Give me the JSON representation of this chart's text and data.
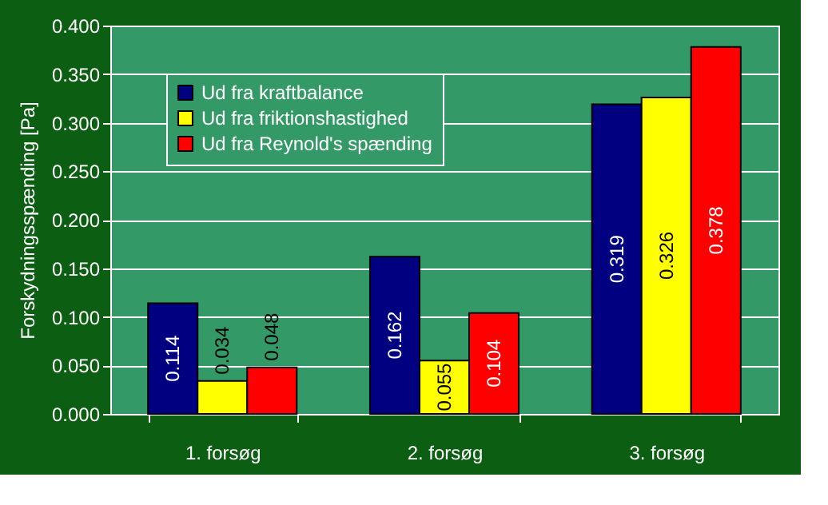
{
  "chart_data": {
    "type": "bar",
    "ylabel": "Forskydningsspænding [Pa]",
    "categories": [
      "1. forsøg",
      "2. forsøg",
      "3. forsøg"
    ],
    "series": [
      {
        "name": "Ud fra kraftbalance",
        "color": "#000080",
        "values": [
          0.114,
          0.162,
          0.319
        ]
      },
      {
        "name": "Ud fra friktionshastighed",
        "color": "#ffff00",
        "values": [
          0.034,
          0.055,
          0.326
        ]
      },
      {
        "name": "Ud fra Reynold's spænding",
        "color": "#ff0000",
        "values": [
          0.048,
          0.104,
          0.378
        ]
      }
    ],
    "ylim": [
      0,
      0.4
    ],
    "yticks": [
      {
        "value": 0,
        "label": "0.000"
      },
      {
        "value": 0.05,
        "label": "0.050"
      },
      {
        "value": 0.1,
        "label": "0.100"
      },
      {
        "value": 0.15,
        "label": "0.150"
      },
      {
        "value": 0.2,
        "label": "0.200"
      },
      {
        "value": 0.25,
        "label": "0.250"
      },
      {
        "value": 0.3,
        "label": "0.300"
      },
      {
        "value": 0.35,
        "label": "0.350"
      },
      {
        "value": 0.4,
        "label": "0.400"
      }
    ],
    "grid": "y",
    "legend": "top left",
    "data_labels": true
  }
}
